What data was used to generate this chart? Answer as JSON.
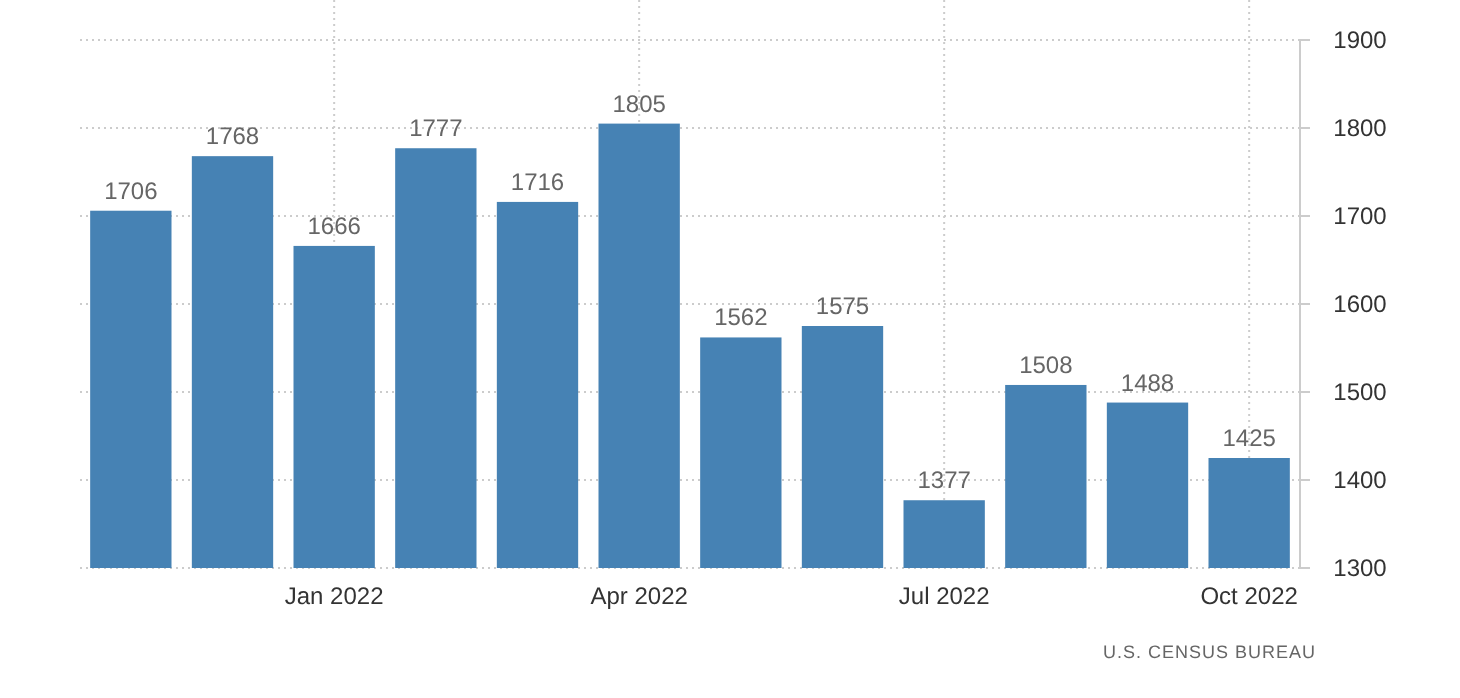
{
  "chart_data": {
    "type": "bar",
    "categories": [
      null,
      null,
      "Jan 2022",
      null,
      null,
      "Apr 2022",
      null,
      null,
      "Jul 2022",
      null,
      null,
      "Oct 2022"
    ],
    "values": [
      1706,
      1768,
      1666,
      1777,
      1716,
      1805,
      1562,
      1575,
      1377,
      1508,
      1488,
      1425
    ],
    "color": "#4682b4",
    "ylim": [
      1300,
      1900
    ],
    "yticks": [
      1300,
      1400,
      1500,
      1600,
      1700,
      1800,
      1900
    ],
    "grid": true,
    "data_labels": true,
    "annotations": [
      "U.S. CENSUS BUREAU"
    ]
  }
}
